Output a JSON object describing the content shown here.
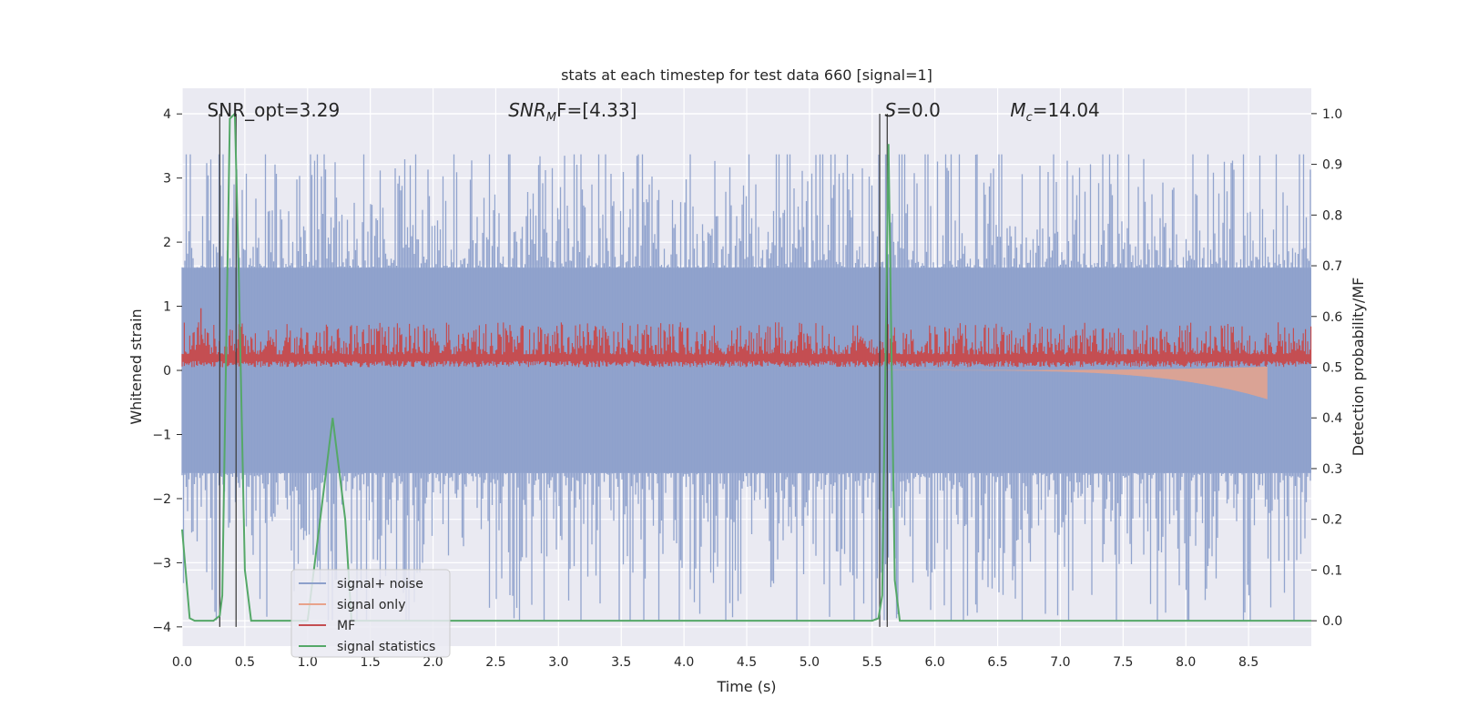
{
  "chart_data": {
    "type": "line",
    "title": "stats at each timestep for test data 660 [signal=1]",
    "xlabel": "Time (s)",
    "ylabel": "Whitened strain",
    "ylabel_right": "Detection probability/MF",
    "xlim": [
      0.0,
      9.0
    ],
    "ylim": [
      -4.3,
      4.4
    ],
    "ylim_right": [
      -0.05,
      1.05
    ],
    "x_ticks": [
      0.0,
      0.5,
      1.0,
      1.5,
      2.0,
      2.5,
      3.0,
      3.5,
      4.0,
      4.5,
      5.0,
      5.5,
      6.0,
      6.5,
      7.0,
      7.5,
      8.0,
      8.5
    ],
    "x_tick_labels": [
      "0.0",
      "0.5",
      "1.0",
      "1.5",
      "2.0",
      "2.5",
      "3.0",
      "3.5",
      "4.0",
      "4.5",
      "5.0",
      "5.5",
      "6.0",
      "6.5",
      "7.0",
      "7.5",
      "8.0",
      "8.5"
    ],
    "y_ticks": [
      -4,
      -3,
      -2,
      -1,
      0,
      1,
      2,
      3,
      4
    ],
    "y_tick_labels": [
      "−4",
      "−3",
      "−2",
      "−1",
      "0",
      "1",
      "2",
      "3",
      "4"
    ],
    "y_ticks_right": [
      0.0,
      0.1,
      0.2,
      0.3,
      0.4,
      0.5,
      0.6,
      0.7,
      0.8,
      0.9,
      1.0
    ],
    "y_tick_labels_right": [
      "0.0",
      "0.1",
      "0.2",
      "0.3",
      "0.4",
      "0.5",
      "0.6",
      "0.7",
      "0.8",
      "0.9",
      "1.0"
    ],
    "grid": true,
    "legend_position": "lower-left",
    "annotations": [
      {
        "label": "SNR_opt=3.29",
        "x": 0.2,
        "y": 4.0
      },
      {
        "label": "SNR",
        "sub": "M",
        "suffix": "F=[4.33]",
        "x": 2.6,
        "y": 4.0,
        "italic": true
      },
      {
        "label": "S=0.0",
        "x": 5.6,
        "y": 4.0,
        "italic_prefix": "S"
      },
      {
        "label": "M",
        "sub": "c",
        "suffix": "=14.04",
        "x": 6.6,
        "y": 4.0,
        "italic": true
      }
    ],
    "vertical_lines": [
      {
        "x": 0.3,
        "ymin": -4.0,
        "ymax": 4.0
      },
      {
        "x": 0.43,
        "ymin": -4.0,
        "ymax": 4.0
      },
      {
        "x": 5.56,
        "ymin": -4.0,
        "ymax": 4.0
      },
      {
        "x": 5.62,
        "ymin": -4.0,
        "ymax": 4.0
      }
    ],
    "series": [
      {
        "name": "signal+ noise",
        "color": "#8da0cb",
        "axis": "left",
        "kind": "noise",
        "baseline_amplitude": 1.6,
        "max_positive": 3.37,
        "min_negative": -3.9
      },
      {
        "name": "signal only",
        "color": "#e8a38b",
        "axis": "left",
        "kind": "chirp",
        "start_x": 5.6,
        "end_x": 8.65,
        "final_amplitude": 0.45
      },
      {
        "name": "MF",
        "color": "#c44e52",
        "axis": "left",
        "kind": "band",
        "lower": 0.05,
        "upper": 0.75
      },
      {
        "name": "signal statistics",
        "color": "#55a868",
        "axis": "right",
        "x": [
          0.0,
          0.06,
          0.1,
          0.25,
          0.3,
          0.32,
          0.38,
          0.42,
          0.45,
          0.5,
          0.55,
          0.58,
          1.0,
          1.1,
          1.2,
          1.3,
          1.35,
          5.5,
          5.55,
          5.58,
          5.63,
          5.68,
          5.72,
          5.75,
          9.0
        ],
        "y": [
          0.18,
          0.005,
          0.0,
          0.0,
          0.01,
          0.05,
          0.99,
          1.0,
          0.7,
          0.1,
          0.0,
          0.0,
          0.0,
          0.2,
          0.4,
          0.2,
          0.0,
          0.0,
          0.005,
          0.05,
          0.94,
          0.08,
          0.0,
          0.0,
          0.0
        ]
      }
    ]
  }
}
